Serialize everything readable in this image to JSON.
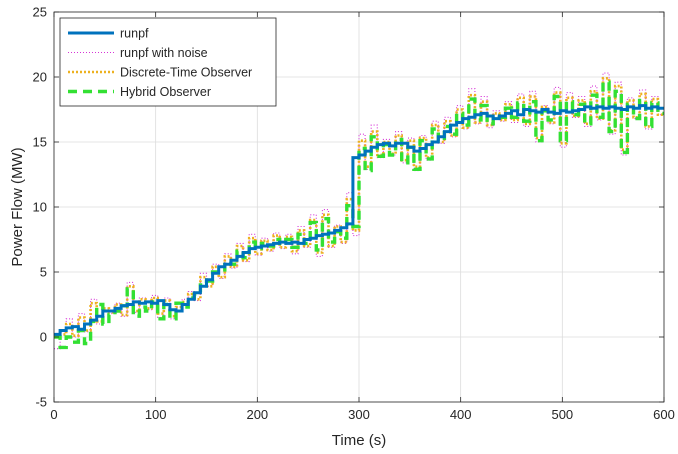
{
  "chart_data": {
    "type": "line",
    "title": "",
    "xlabel": "Time (s)",
    "ylabel": "Power Flow (MW)",
    "xlim": [
      0,
      600
    ],
    "ylim": [
      -5,
      25
    ],
    "xticks": [
      0,
      100,
      200,
      300,
      400,
      500,
      600
    ],
    "yticks": [
      -5,
      0,
      5,
      10,
      15,
      20,
      25
    ],
    "grid": true,
    "legend_position": "top-left",
    "series": [
      {
        "name": "runpf",
        "color": "#0072BD",
        "style": "solid",
        "step": 6,
        "values": [
          0.2,
          0.5,
          0.7,
          0.8,
          0.6,
          1.0,
          1.3,
          1.6,
          2.0,
          2.0,
          2.2,
          2.4,
          2.5,
          2.7,
          2.6,
          2.7,
          2.6,
          2.8,
          2.5,
          2.1,
          2.0,
          2.5,
          2.9,
          3.4,
          3.9,
          4.4,
          4.9,
          5.4,
          5.6,
          5.9,
          6.2,
          6.5,
          6.8,
          6.9,
          7.0,
          7.1,
          7.2,
          7.3,
          7.2,
          7.3,
          7.2,
          7.5,
          7.6,
          7.8,
          7.9,
          8.0,
          8.2,
          8.4,
          8.7,
          13.8,
          14.0,
          14.3,
          14.6,
          14.8,
          14.9,
          14.7,
          14.9,
          14.9,
          14.6,
          14.3,
          14.5,
          14.8,
          15.0,
          15.4,
          15.8,
          16.3,
          16.5,
          16.8,
          16.9,
          17.1,
          17.2,
          17.0,
          16.8,
          17.0,
          17.2,
          17.4,
          17.1,
          17.5,
          17.4,
          17.3,
          17.5,
          17.3,
          17.2,
          17.4,
          17.3,
          17.4,
          17.5,
          17.7,
          17.6,
          17.7,
          17.6,
          17.7,
          17.6,
          17.5,
          17.7,
          17.6,
          17.8,
          17.6,
          17.7,
          17.6
        ]
      },
      {
        "name": "runpf with noise",
        "color": "#D633D6",
        "style": "dotted",
        "step": 6,
        "values": [
          -0.9,
          0.4,
          1.4,
          0.0,
          1.8,
          0.4,
          2.9,
          1.0,
          2.2,
          1.8,
          2.6,
          1.6,
          4.2,
          1.9,
          3.0,
          2.1,
          3.2,
          1.5,
          3.0,
          1.4,
          2.3,
          2.9,
          3.5,
          2.8,
          4.9,
          3.9,
          5.6,
          4.5,
          6.4,
          5.3,
          7.2,
          5.8,
          7.9,
          6.3,
          7.6,
          6.6,
          8.0,
          6.8,
          7.9,
          6.4,
          8.5,
          6.9,
          9.4,
          6.2,
          9.8,
          6.9,
          8.6,
          7.2,
          11.1,
          7.8,
          15.6,
          12.9,
          16.3,
          13.8,
          15.2,
          14.0,
          15.8,
          13.4,
          15.3,
          12.8,
          15.5,
          13.6,
          16.6,
          14.9,
          16.9,
          15.4,
          17.8,
          16.0,
          19.1,
          16.4,
          18.5,
          16.1,
          17.4,
          16.6,
          18.1,
          16.5,
          18.7,
          16.2,
          18.9,
          15.0,
          17.8,
          16.4,
          19.2,
          14.6,
          18.8,
          16.9,
          18.5,
          16.2,
          19.3,
          16.7,
          20.3,
          15.6,
          19.6,
          14.0,
          18.4,
          16.8,
          19.0,
          16.0,
          18.5,
          17.1
        ]
      },
      {
        "name": "Discrete-Time Observer",
        "color": "#EDB120",
        "style": "dotted",
        "step": 6,
        "values": [
          0.0,
          0.2,
          1.0,
          0.1,
          1.5,
          0.5,
          2.6,
          1.2,
          2.2,
          1.9,
          2.5,
          1.7,
          3.9,
          2.0,
          2.9,
          2.2,
          3.0,
          1.8,
          2.8,
          1.6,
          2.3,
          2.7,
          3.3,
          2.9,
          4.6,
          3.9,
          5.4,
          4.6,
          6.2,
          5.4,
          7.0,
          5.9,
          7.6,
          6.4,
          7.4,
          6.7,
          7.8,
          6.9,
          7.7,
          6.6,
          8.2,
          7.0,
          9.0,
          6.5,
          9.4,
          7.0,
          8.5,
          7.3,
          10.6,
          8.2,
          15.1,
          13.1,
          15.8,
          14.0,
          15.0,
          14.1,
          15.5,
          13.6,
          15.1,
          13.1,
          15.3,
          13.8,
          16.3,
          15.0,
          16.6,
          15.5,
          17.5,
          16.1,
          18.6,
          16.5,
          18.1,
          16.3,
          17.2,
          16.7,
          17.9,
          16.7,
          18.4,
          16.4,
          18.5,
          15.3,
          17.7,
          16.5,
          18.8,
          14.9,
          18.4,
          17.0,
          18.2,
          16.4,
          18.9,
          16.8,
          19.9,
          15.9,
          19.3,
          14.4,
          18.2,
          16.9,
          18.7,
          16.2,
          18.3,
          17.1
        ]
      },
      {
        "name": "Hybrid Observer",
        "color": "#33E033",
        "style": "dashed",
        "step": 6,
        "values": [
          0.0,
          -0.8,
          0.0,
          -0.4,
          0.5,
          -0.5,
          1.2,
          2.5,
          1.0,
          1.7,
          2.0,
          2.4,
          3.7,
          1.6,
          2.3,
          2.0,
          2.7,
          1.4,
          2.5,
          1.4,
          2.6,
          2.3,
          3.0,
          3.3,
          4.0,
          4.3,
          5.0,
          5.0,
          5.8,
          5.6,
          6.6,
          6.1,
          7.3,
          6.8,
          7.2,
          7.0,
          7.5,
          7.2,
          7.5,
          6.9,
          7.9,
          7.2,
          8.8,
          6.7,
          9.1,
          7.3,
          8.1,
          7.6,
          10.1,
          8.5,
          14.5,
          12.8,
          15.4,
          13.9,
          14.8,
          14.0,
          15.2,
          13.4,
          14.6,
          12.9,
          15.1,
          13.7,
          16.0,
          15.1,
          16.2,
          15.6,
          17.2,
          16.3,
          18.3,
          16.7,
          17.8,
          16.4,
          17.0,
          16.9,
          17.6,
          16.9,
          18.0,
          16.6,
          18.1,
          15.1,
          17.4,
          16.7,
          18.5,
          15.1,
          18.1,
          17.1,
          17.9,
          16.4,
          18.6,
          16.9,
          19.6,
          15.8,
          18.9,
          14.2,
          17.9,
          16.8,
          18.2,
          16.2,
          18.0,
          17.2
        ]
      }
    ]
  }
}
